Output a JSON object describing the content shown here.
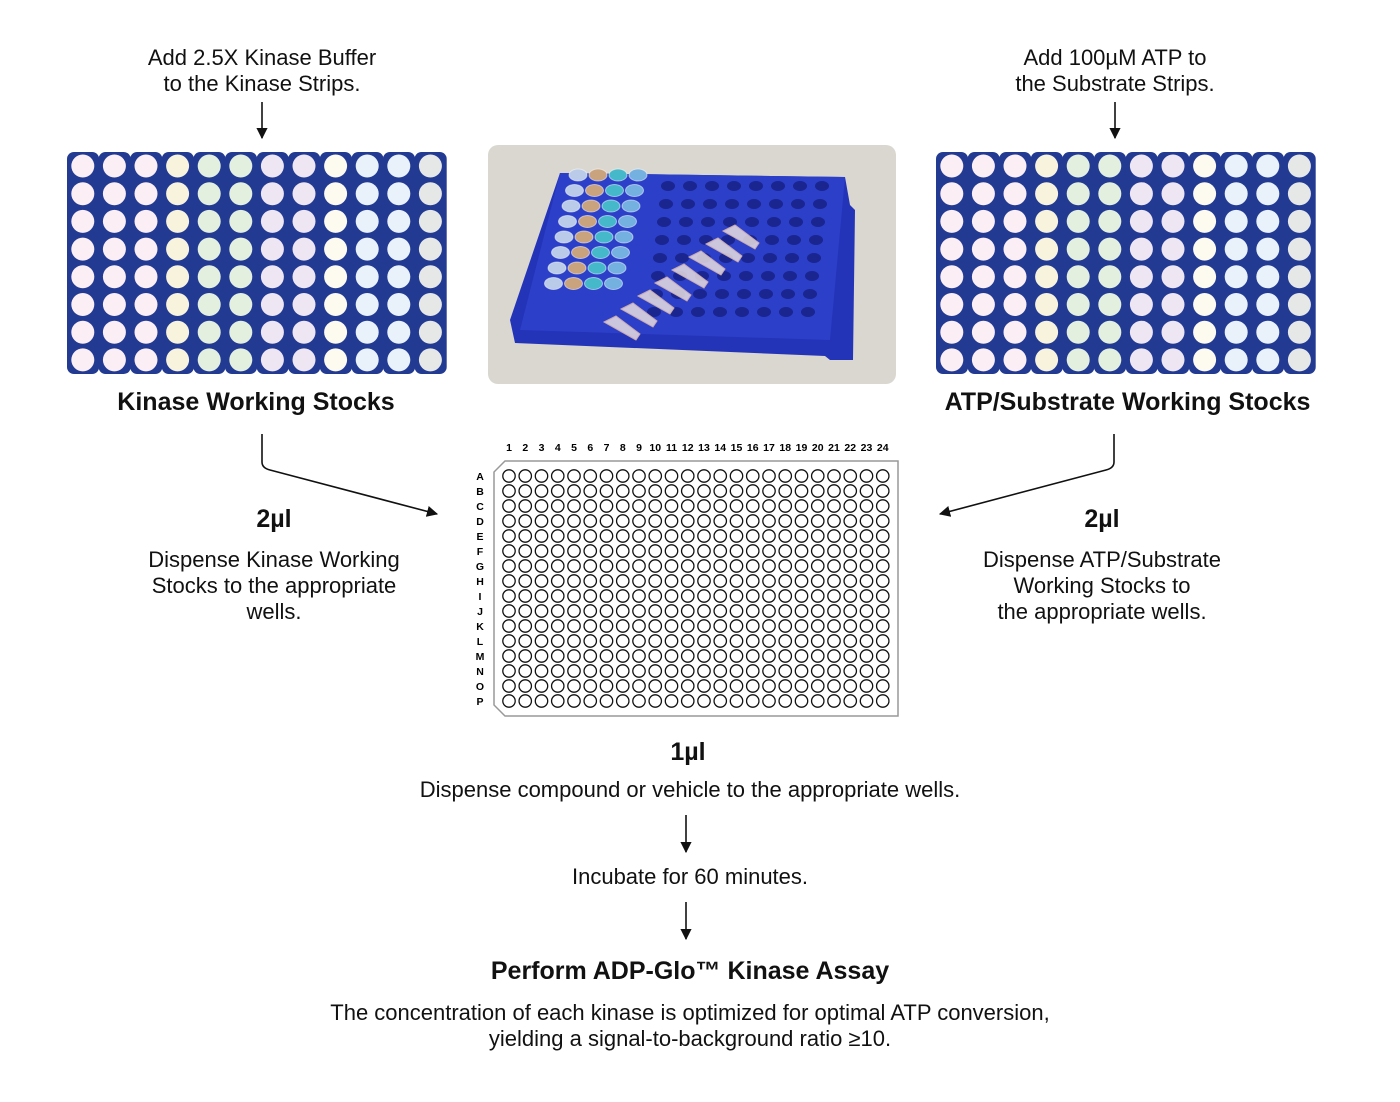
{
  "left": {
    "instruction": "Add 2.5X Kinase Buffer\nto the Kinase Strips.",
    "rack_title": "Kinase Working Stocks",
    "volume": "2µl",
    "dispense_text": "Dispense Kinase Working\nStocks to the appropriate\nwells."
  },
  "right": {
    "instruction": "Add 100µM ATP to\nthe Substrate Strips.",
    "rack_title": "ATP/Substrate Working Stocks",
    "volume": "2µl",
    "dispense_text": "Dispense ATP/Substrate\nWorking Stocks to\nthe appropriate wells."
  },
  "plate": {
    "columns": [
      "1",
      "2",
      "3",
      "4",
      "5",
      "6",
      "7",
      "8",
      "9",
      "10",
      "11",
      "12",
      "13",
      "14",
      "15",
      "16",
      "17",
      "18",
      "19",
      "20",
      "21",
      "22",
      "23",
      "24"
    ],
    "rows": [
      "A",
      "B",
      "C",
      "D",
      "E",
      "F",
      "G",
      "H",
      "I",
      "J",
      "K",
      "L",
      "M",
      "N",
      "O",
      "P"
    ]
  },
  "steps": {
    "compound_volume": "1µl",
    "compound_text": "Dispense compound or vehicle to the appropriate wells.",
    "incubate_text": "Incubate for 60 minutes.",
    "assay_title": "Perform ADP-Glo™ Kinase Assay",
    "assay_text": "The concentration of each kinase is optimized for optimal ATP conversion,\nyielding a signal-to-background ratio ≥10."
  },
  "colors": {
    "rack_blue": "#223a92",
    "strip_colors": [
      "#fbeef4",
      "#fbeef4",
      "#fbeef4",
      "#f8f3dc",
      "#e3f0df",
      "#e3f0df",
      "#efe6f3",
      "#efe6f3",
      "#fdfaf0",
      "#e9f2fb",
      "#e9f2fb",
      "#e6e8e8"
    ]
  }
}
